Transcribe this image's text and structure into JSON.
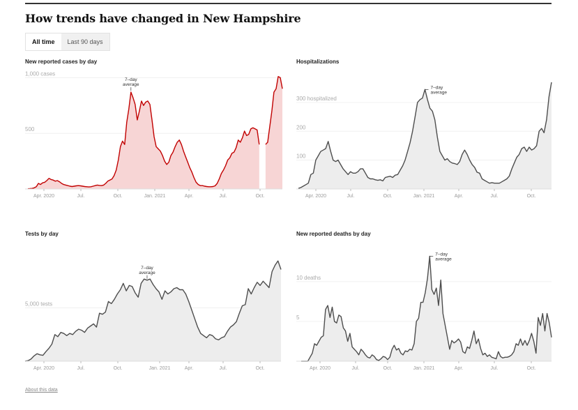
{
  "header": {
    "title": "How trends have changed in New Hampshire"
  },
  "tabs": [
    {
      "label": "All time",
      "active": true
    },
    {
      "label": "Last 90 days",
      "active": false
    }
  ],
  "footer": {
    "about_link": "About this data"
  },
  "annotation": {
    "line1": "7–day",
    "line2": "average"
  },
  "colors": {
    "cases_line": "#c10000",
    "cases_fill": "#f7d5d5",
    "gray_line": "#4d4d4d",
    "gray_fill": "#ededed"
  },
  "chart_data": [
    {
      "type": "area",
      "title": "New reported cases by day",
      "x_ticks": [
        "Apr. 2020",
        "Jul.",
        "Oct.",
        "Jan. 2021",
        "Apr.",
        "Jul.",
        "Oct."
      ],
      "y_ticks": [
        {
          "value": 500,
          "label": "500"
        },
        {
          "value": 1000,
          "label": "1,000 cases"
        }
      ],
      "ylim": [
        0,
        1040
      ],
      "x_range_months": [
        2020.17,
        2021.92
      ],
      "gap_note": "missing data gap near Nov. 2021",
      "series": [
        {
          "name": "7-day average",
          "values": [
            2,
            3,
            5,
            10,
            20,
            50,
            40,
            55,
            60,
            75,
            95,
            85,
            80,
            70,
            75,
            65,
            50,
            40,
            35,
            30,
            25,
            22,
            25,
            28,
            30,
            28,
            25,
            22,
            20,
            18,
            20,
            25,
            30,
            35,
            32,
            30,
            35,
            50,
            70,
            80,
            90,
            120,
            170,
            260,
            380,
            430,
            400,
            600,
            720,
            870,
            820,
            760,
            620,
            700,
            790,
            750,
            780,
            790,
            760,
            620,
            470,
            380,
            360,
            340,
            300,
            250,
            220,
            240,
            300,
            330,
            380,
            420,
            440,
            400,
            340,
            290,
            240,
            190,
            150,
            100,
            60,
            40,
            30,
            30,
            25,
            22,
            20,
            20,
            22,
            28,
            50,
            90,
            140,
            170,
            210,
            260,
            280,
            320,
            330,
            370,
            440,
            420,
            460,
            520,
            480,
            490,
            540,
            550,
            540,
            530,
            400,
            null,
            null,
            400,
            420,
            560,
            700,
            870,
            900,
            1010,
            1000,
            900
          ]
        }
      ]
    },
    {
      "type": "area",
      "title": "Hospitalizations",
      "x_ticks": [
        "Apr. 2020",
        "Jul.",
        "Oct.",
        "Jan. 2021",
        "Apr.",
        "Jul.",
        "Oct."
      ],
      "y_ticks": [
        {
          "value": 100,
          "label": "100"
        },
        {
          "value": 200,
          "label": "200"
        },
        {
          "value": 300,
          "label": "300 hospitalized"
        }
      ],
      "ylim": [
        0,
        370
      ],
      "series": [
        {
          "name": "7-day average",
          "values": [
            2,
            5,
            10,
            15,
            20,
            50,
            55,
            100,
            115,
            130,
            135,
            140,
            165,
            130,
            100,
            95,
            100,
            85,
            70,
            60,
            50,
            60,
            55,
            55,
            60,
            70,
            70,
            55,
            40,
            35,
            35,
            32,
            30,
            32,
            28,
            40,
            42,
            44,
            40,
            48,
            50,
            65,
            80,
            100,
            130,
            160,
            200,
            250,
            300,
            310,
            315,
            345,
            310,
            280,
            270,
            240,
            180,
            130,
            115,
            100,
            105,
            95,
            90,
            88,
            85,
            95,
            120,
            135,
            120,
            100,
            85,
            75,
            58,
            55,
            35,
            30,
            25,
            20,
            22,
            20,
            20,
            20,
            25,
            30,
            35,
            45,
            70,
            90,
            110,
            120,
            140,
            145,
            130,
            145,
            135,
            140,
            150,
            200,
            210,
            195,
            240,
            320,
            370
          ]
        }
      ]
    },
    {
      "type": "area",
      "title": "Tests by day",
      "x_ticks": [
        "Apr. 2020",
        "Jul.",
        "Oct.",
        "Jan. 2021",
        "Apr.",
        "Jul.",
        "Oct."
      ],
      "y_ticks": [
        {
          "value": 5000,
          "label": "5,000 tests"
        }
      ],
      "ylim": [
        0,
        10200
      ],
      "series": [
        {
          "name": "7-day average",
          "values": [
            0,
            50,
            200,
            500,
            700,
            600,
            550,
            900,
            1200,
            1600,
            2500,
            2300,
            2700,
            2600,
            2400,
            2600,
            2500,
            2800,
            3000,
            2900,
            2700,
            3100,
            3300,
            3500,
            3200,
            4500,
            4400,
            4600,
            5600,
            5400,
            5800,
            6300,
            6700,
            7300,
            6600,
            7100,
            7000,
            6400,
            6000,
            7300,
            7700,
            7600,
            7700,
            7200,
            6800,
            6500,
            5800,
            6600,
            6300,
            6500,
            6800,
            6900,
            6700,
            6700,
            6300,
            5600,
            4800,
            4000,
            3200,
            2600,
            2400,
            2200,
            2500,
            2400,
            2100,
            2000,
            2200,
            2300,
            2800,
            3200,
            3400,
            3700,
            4500,
            5200,
            5300,
            6800,
            6300,
            6900,
            7400,
            7100,
            7500,
            7200,
            6900,
            8400,
            9000,
            9400,
            8600
          ]
        }
      ]
    },
    {
      "type": "area",
      "title": "New reported deaths by day",
      "x_ticks": [
        "Apr. 2020",
        "Jul.",
        "Oct.",
        "Jan. 2021",
        "Apr.",
        "Jul.",
        "Oct."
      ],
      "y_ticks": [
        {
          "value": 5,
          "label": "5"
        },
        {
          "value": 10,
          "label": "10 deaths"
        }
      ],
      "ylim": [
        0,
        13.5
      ],
      "series": [
        {
          "name": "7-day average",
          "values": [
            0,
            0,
            0,
            0,
            0.5,
            1,
            2.2,
            2,
            2.5,
            3,
            3.2,
            6.5,
            7,
            5.5,
            6.8,
            5,
            4.8,
            5.8,
            5.6,
            4.2,
            3.8,
            2.5,
            3.5,
            1.8,
            1.5,
            1.2,
            0.8,
            1.5,
            1.2,
            0.8,
            0.5,
            0.4,
            0.8,
            0.6,
            0.2,
            0.1,
            0.3,
            0.6,
            0.5,
            0.2,
            0.5,
            1.5,
            2,
            1.4,
            1.6,
            1,
            0.8,
            1.3,
            1.2,
            1.5,
            1.4,
            2.2,
            5,
            5.4,
            7.4,
            7.4,
            8.6,
            10.4,
            13.2,
            9,
            8.4,
            9.2,
            7,
            10.2,
            6,
            4.5,
            3,
            1.5,
            2.6,
            2.3,
            2.5,
            2.8,
            2.4,
            1.2,
            1,
            1.8,
            1.6,
            2.6,
            3.8,
            2.2,
            2.8,
            1.6,
            0.8,
            1,
            0.6,
            0.8,
            0.5,
            0.4,
            0.3,
            1.2,
            0.6,
            0.4,
            0.5,
            0.5,
            0.6,
            0.8,
            1.2,
            2.2,
            2,
            2.8,
            2,
            2.6,
            2,
            2.6,
            3.5,
            2.5,
            1,
            5.5,
            4.5,
            6,
            3.8,
            6,
            4.8,
            3
          ]
        }
      ]
    }
  ]
}
